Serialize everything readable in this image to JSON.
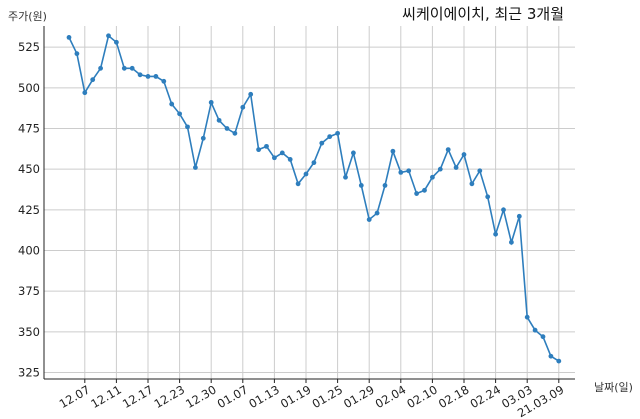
{
  "chart_data": {
    "type": "line",
    "title": "씨케이에이치, 최근 3개월",
    "ylabel": "주가(원)",
    "xlabel": "날짜(일)",
    "ylim": [
      321,
      538
    ],
    "y_ticks": [
      325,
      350,
      375,
      400,
      425,
      450,
      475,
      500,
      525
    ],
    "x_tick_labels": [
      {
        "label": "12.07",
        "index": 2
      },
      {
        "label": "12.11",
        "index": 6
      },
      {
        "label": "12.17",
        "index": 10
      },
      {
        "label": "12.23",
        "index": 14
      },
      {
        "label": "12.30",
        "index": 18
      },
      {
        "label": "01.07",
        "index": 22
      },
      {
        "label": "01.13",
        "index": 26
      },
      {
        "label": "01.19",
        "index": 30
      },
      {
        "label": "01.25",
        "index": 34
      },
      {
        "label": "01.29",
        "index": 38
      },
      {
        "label": "02.04",
        "index": 42
      },
      {
        "label": "02.10",
        "index": 46
      },
      {
        "label": "02.18",
        "index": 50
      },
      {
        "label": "02.24",
        "index": 54
      },
      {
        "label": "03.03",
        "index": 58
      },
      {
        "label": "21.03.09",
        "index": 62
      }
    ],
    "grid": true,
    "series": [
      {
        "color": "#2e7ebd",
        "values": [
          531,
          521,
          497,
          505,
          512,
          532,
          528,
          512,
          512,
          508,
          507,
          507,
          504,
          490,
          484,
          476,
          451,
          469,
          491,
          480,
          475,
          472,
          488,
          496,
          462,
          464,
          457,
          460,
          456,
          441,
          447,
          454,
          466,
          470,
          472,
          445,
          460,
          440,
          419,
          423,
          440,
          461,
          448,
          449,
          435,
          437,
          445,
          450,
          462,
          451,
          459,
          441,
          449,
          433,
          410,
          425,
          405,
          421,
          359,
          351,
          347,
          335,
          332
        ]
      }
    ]
  }
}
